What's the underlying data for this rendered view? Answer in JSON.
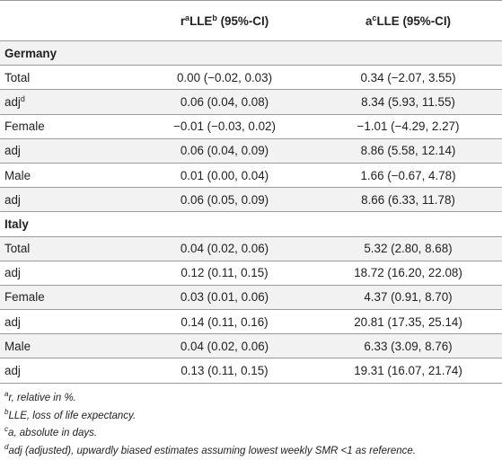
{
  "header": {
    "col2": {
      "prefix": "r",
      "sup1": "a",
      "mid": "LLE",
      "sup2": "b",
      "suffix": " (95%-CI)"
    },
    "col3": {
      "prefix": "a",
      "sup1": "c",
      "mid": "LLE (95%-CI)"
    }
  },
  "sections": [
    {
      "name": "Germany",
      "rows": [
        {
          "label": "Total",
          "label_sup": "",
          "r": "0.00 (−0.02, 0.03)",
          "a": "0.34 (−2.07, 3.55)"
        },
        {
          "label": "adj",
          "label_sup": "d",
          "r": "0.06 (0.04, 0.08)",
          "a": "8.34 (5.93, 11.55)"
        },
        {
          "label": "Female",
          "label_sup": "",
          "r": "−0.01 (−0.03, 0.02)",
          "a": "−1.01 (−4.29, 2.27)"
        },
        {
          "label": "adj",
          "label_sup": "",
          "r": "0.06 (0.04, 0.09)",
          "a": "8.86 (5.58, 12.14)"
        },
        {
          "label": "Male",
          "label_sup": "",
          "r": "0.01 (0.00, 0.04)",
          "a": "1.66 (−0.67, 4.78)"
        },
        {
          "label": "adj",
          "label_sup": "",
          "r": "0.06 (0.05, 0.09)",
          "a": "8.66 (6.33, 11.78)"
        }
      ]
    },
    {
      "name": "Italy",
      "rows": [
        {
          "label": "Total",
          "label_sup": "",
          "r": "0.04 (0.02, 0.06)",
          "a": "5.32 (2.80, 8.68)"
        },
        {
          "label": "adj",
          "label_sup": "",
          "r": "0.12 (0.11, 0.15)",
          "a": "18.72 (16.20, 22.08)"
        },
        {
          "label": "Female",
          "label_sup": "",
          "r": "0.03 (0.01, 0.06)",
          "a": "4.37 (0.91, 8.70)"
        },
        {
          "label": "adj",
          "label_sup": "",
          "r": "0.14 (0.11, 0.16)",
          "a": "20.81 (17.35, 25.14)"
        },
        {
          "label": "Male",
          "label_sup": "",
          "r": "0.04 (0.02, 0.06)",
          "a": "6.33 (3.09, 8.76)"
        },
        {
          "label": "adj",
          "label_sup": "",
          "r": "0.13 (0.11, 0.15)",
          "a": "19.31 (16.07, 21.74)"
        }
      ]
    }
  ],
  "footnotes": [
    {
      "mark": "a",
      "text": "r, relative in %."
    },
    {
      "mark": "b",
      "text": "LLE, loss of life expectancy."
    },
    {
      "mark": "c",
      "text": "a, absolute in days."
    },
    {
      "mark": "d",
      "text": "adj (adjusted), upwardly biased estimates assuming lowest weekly SMR <1 as reference."
    }
  ],
  "colors": {
    "stripe": "#f2f2f2",
    "rule": "#9a9a9a",
    "text": "#222222"
  }
}
